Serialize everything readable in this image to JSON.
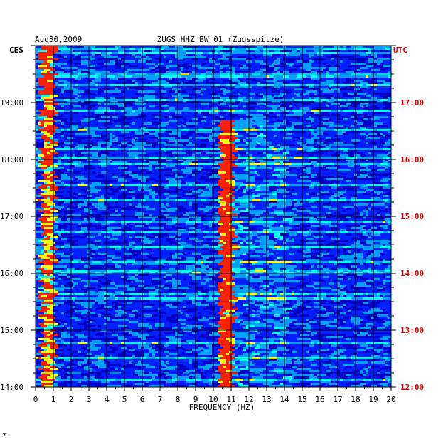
{
  "chart_data": {
    "type": "heatmap",
    "date": "Aug30,2009",
    "title": "ZUGS HHZ BW 01 (Zugsspitze)",
    "left_zone": "CES",
    "right_zone": "UTC",
    "xlabel": "FREQUENCY (HZ)",
    "x_ticks": [
      "0",
      "1",
      "2",
      "3",
      "4",
      "5",
      "6",
      "7",
      "8",
      "9",
      "10",
      "11",
      "12",
      "13",
      "14",
      "15",
      "16",
      "17",
      "18",
      "19",
      "20"
    ],
    "xlim": [
      0,
      20
    ],
    "y_ticks_left": [
      "14:00",
      "15:00",
      "16:00",
      "17:00",
      "18:00",
      "19:00"
    ],
    "y_ticks_right": [
      "12:00",
      "13:00",
      "14:00",
      "15:00",
      "16:00",
      "17:00"
    ],
    "y_range_ces_hours": [
      14.0,
      20.0
    ],
    "color_scale": [
      "#00007a",
      "#0000c8",
      "#0020ff",
      "#00a0ff",
      "#00ffff",
      "#ffff00",
      "#ff2000"
    ],
    "hot_bands_hz": [
      {
        "range": [
          0.1,
          0.9
        ],
        "description": "low-frequency noise"
      },
      {
        "range": [
          10.2,
          10.9
        ],
        "description": "persistent spectral line"
      }
    ],
    "right_axis_color": "#dd0000",
    "grid": true
  },
  "footer_mark": "*"
}
